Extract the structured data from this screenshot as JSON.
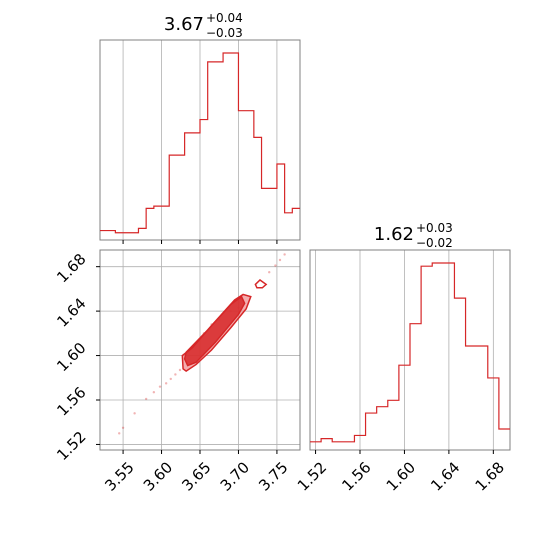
{
  "colors": {
    "line": "#d62728",
    "fill": "#f08a8c",
    "grid": "#b0b0b0",
    "axis": "#808080",
    "text": "#000000"
  },
  "chart_data": [
    {
      "type": "histogram",
      "panel": "top-left",
      "title": {
        "value": "3.67",
        "upper": "+0.04",
        "lower": "−0.03"
      },
      "grid": true,
      "xlim": [
        3.52,
        3.78
      ],
      "xticks": [
        3.55,
        3.6,
        3.65,
        3.7,
        3.75
      ],
      "xtick_labels": [],
      "bins": [
        3.52,
        3.53,
        3.54,
        3.55,
        3.56,
        3.57,
        3.58,
        3.59,
        3.6,
        3.61,
        3.62,
        3.63,
        3.64,
        3.65,
        3.66,
        3.67,
        3.68,
        3.69,
        3.7,
        3.71,
        3.72,
        3.73,
        3.74,
        3.75,
        3.76,
        3.77,
        3.78
      ],
      "counts": [
        1,
        1,
        0.5,
        0.5,
        0.5,
        1.5,
        6,
        6.5,
        6.5,
        18,
        18,
        23,
        23,
        26,
        39,
        39,
        41,
        41,
        28,
        28,
        22,
        10.5,
        10.5,
        16,
        5,
        6
      ]
    },
    {
      "type": "contour",
      "panel": "bottom-left",
      "grid": true,
      "xlim": [
        3.52,
        3.78
      ],
      "ylim": [
        1.515,
        1.695
      ],
      "xticks": [
        "3.55",
        "3.60",
        "3.65",
        "3.70",
        "3.75"
      ],
      "yticks": [
        "1.52",
        "1.56",
        "1.60",
        "1.64",
        "1.68"
      ],
      "inner_contour": [
        [
          3.63,
          1.597
        ],
        [
          3.632,
          1.603
        ],
        [
          3.66,
          1.623
        ],
        [
          3.69,
          1.646
        ],
        [
          3.704,
          1.653
        ],
        [
          3.708,
          1.647
        ],
        [
          3.7,
          1.637
        ],
        [
          3.67,
          1.612
        ],
        [
          3.645,
          1.594
        ],
        [
          3.634,
          1.591
        ]
      ],
      "outer_contour": [
        [
          3.628,
          1.588
        ],
        [
          3.627,
          1.6
        ],
        [
          3.64,
          1.607
        ],
        [
          3.665,
          1.627
        ],
        [
          3.695,
          1.65
        ],
        [
          3.706,
          1.655
        ],
        [
          3.716,
          1.653
        ],
        [
          3.71,
          1.642
        ],
        [
          3.69,
          1.625
        ],
        [
          3.665,
          1.605
        ],
        [
          3.645,
          1.592
        ],
        [
          3.632,
          1.586
        ]
      ],
      "island_contour": [
        [
          3.722,
          1.664
        ],
        [
          3.728,
          1.668
        ],
        [
          3.736,
          1.664
        ],
        [
          3.731,
          1.661
        ],
        [
          3.724,
          1.661
        ]
      ],
      "samples": [
        [
          3.565,
          1.548
        ],
        [
          3.58,
          1.561
        ],
        [
          3.59,
          1.567
        ],
        [
          3.598,
          1.572
        ],
        [
          3.606,
          1.575
        ],
        [
          3.612,
          1.579
        ],
        [
          3.618,
          1.583
        ],
        [
          3.624,
          1.587
        ],
        [
          3.655,
          1.62
        ],
        [
          3.665,
          1.628
        ],
        [
          3.675,
          1.632
        ],
        [
          3.69,
          1.64
        ],
        [
          3.7,
          1.643
        ],
        [
          3.74,
          1.675
        ],
        [
          3.748,
          1.681
        ],
        [
          3.754,
          1.686
        ],
        [
          3.76,
          1.691
        ],
        [
          3.55,
          1.535
        ],
        [
          3.545,
          1.53
        ]
      ]
    },
    {
      "type": "histogram",
      "panel": "bottom-right",
      "title": {
        "value": "1.62",
        "upper": "+0.03",
        "lower": "−0.02"
      },
      "grid": true,
      "xlim": [
        1.515,
        1.695
      ],
      "xticks": [
        1.52,
        1.56,
        1.6,
        1.64,
        1.68
      ],
      "xtick_labels": [
        "1.52",
        "1.56",
        "1.60",
        "1.64",
        "1.68"
      ],
      "bins": [
        1.515,
        1.525,
        1.535,
        1.545,
        1.555,
        1.565,
        1.575,
        1.585,
        1.595,
        1.605,
        1.615,
        1.625,
        1.635,
        1.645,
        1.655,
        1.665,
        1.675,
        1.685,
        1.695
      ],
      "counts": [
        1,
        2,
        1,
        1,
        3,
        10,
        12,
        14,
        25,
        38,
        56,
        57,
        57,
        46,
        31,
        31,
        21,
        5
      ]
    }
  ]
}
